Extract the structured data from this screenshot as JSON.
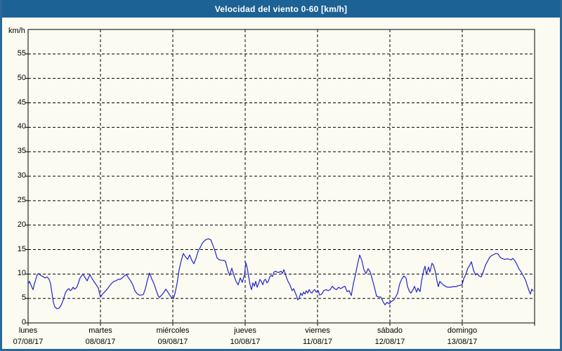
{
  "window": {
    "title": "Velocidad del viento 0-60 [km/h]"
  },
  "colors": {
    "titlebar_bg": "#1D6294",
    "title_text": "#FFFFFF",
    "frame_border": "#2B6897",
    "panel_bg": "#FBFBF2",
    "line": "#2222CC",
    "grid": "#000000",
    "axis": "#000000",
    "text": "#000000"
  },
  "chart_data": {
    "type": "line",
    "title": "Velocidad del viento 0-60 [km/h]",
    "ylabel": "km/h",
    "xlabel": "",
    "ylim": [
      0,
      60
    ],
    "xlim_days": [
      0,
      7
    ],
    "grid": true,
    "legend": "none",
    "y_ticks": [
      0,
      5,
      10,
      15,
      20,
      25,
      30,
      35,
      40,
      45,
      50,
      55
    ],
    "x_axis": {
      "days": [
        {
          "name": "lunes",
          "date": "07/08/17"
        },
        {
          "name": "martes",
          "date": "08/08/17"
        },
        {
          "name": "miércoles",
          "date": "09/08/17"
        },
        {
          "name": "jueves",
          "date": "10/08/17"
        },
        {
          "name": "viernes",
          "date": "11/08/17"
        },
        {
          "name": "sábado",
          "date": "12/08/17"
        },
        {
          "name": "domingo",
          "date": "13/08/17"
        }
      ]
    },
    "series": [
      {
        "name": "Velocidad del viento [km/h]",
        "color": "#2222CC",
        "points": [
          [
            0.0,
            8.0
          ],
          [
            0.019,
            8.5
          ],
          [
            0.049,
            7.4
          ],
          [
            0.068,
            6.8
          ],
          [
            0.087,
            8.0
          ],
          [
            0.126,
            9.9
          ],
          [
            0.146,
            10.1
          ],
          [
            0.175,
            9.7
          ],
          [
            0.204,
            9.5
          ],
          [
            0.233,
            9.2
          ],
          [
            0.262,
            9.4
          ],
          [
            0.291,
            8.9
          ],
          [
            0.311,
            8.0
          ],
          [
            0.33,
            6.1
          ],
          [
            0.35,
            4.2
          ],
          [
            0.369,
            3.3
          ],
          [
            0.398,
            2.9
          ],
          [
            0.427,
            3.0
          ],
          [
            0.456,
            3.6
          ],
          [
            0.485,
            4.7
          ],
          [
            0.515,
            6.1
          ],
          [
            0.544,
            6.8
          ],
          [
            0.563,
            7.0
          ],
          [
            0.583,
            6.6
          ],
          [
            0.602,
            6.8
          ],
          [
            0.621,
            7.3
          ],
          [
            0.641,
            6.9
          ],
          [
            0.67,
            7.2
          ],
          [
            0.689,
            7.9
          ],
          [
            0.718,
            9.2
          ],
          [
            0.757,
            10.0
          ],
          [
            0.786,
            9.3
          ],
          [
            0.816,
            8.6
          ],
          [
            0.854,
            9.9
          ],
          [
            0.883,
            9.1
          ],
          [
            0.913,
            8.4
          ],
          [
            0.942,
            7.8
          ],
          [
            0.971,
            7.1
          ],
          [
            1.0,
            5.3
          ],
          [
            1.029,
            5.9
          ],
          [
            1.068,
            6.5
          ],
          [
            1.097,
            7.0
          ],
          [
            1.126,
            7.6
          ],
          [
            1.155,
            8.1
          ],
          [
            1.184,
            8.5
          ],
          [
            1.214,
            8.6
          ],
          [
            1.243,
            8.9
          ],
          [
            1.272,
            8.9
          ],
          [
            1.301,
            9.2
          ],
          [
            1.33,
            9.6
          ],
          [
            1.359,
            9.9
          ],
          [
            1.388,
            9.2
          ],
          [
            1.417,
            8.6
          ],
          [
            1.447,
            7.8
          ],
          [
            1.476,
            6.6
          ],
          [
            1.505,
            6.0
          ],
          [
            1.534,
            5.7
          ],
          [
            1.563,
            5.7
          ],
          [
            1.592,
            5.8
          ],
          [
            1.621,
            7.0
          ],
          [
            1.65,
            8.8
          ],
          [
            1.68,
            10.2
          ],
          [
            1.709,
            9.0
          ],
          [
            1.738,
            8.1
          ],
          [
            1.767,
            6.8
          ],
          [
            1.796,
            5.6
          ],
          [
            1.816,
            5.2
          ],
          [
            1.845,
            5.7
          ],
          [
            1.874,
            6.2
          ],
          [
            1.903,
            6.9
          ],
          [
            1.932,
            6.3
          ],
          [
            1.961,
            5.6
          ],
          [
            1.99,
            5.1
          ],
          [
            2.01,
            5.0
          ],
          [
            2.029,
            6.0
          ],
          [
            2.058,
            8.0
          ],
          [
            2.087,
            10.9
          ],
          [
            2.117,
            12.8
          ],
          [
            2.146,
            14.2
          ],
          [
            2.175,
            13.5
          ],
          [
            2.204,
            13.0
          ],
          [
            2.233,
            13.9
          ],
          [
            2.262,
            12.8
          ],
          [
            2.291,
            12.1
          ],
          [
            2.32,
            13.2
          ],
          [
            2.35,
            14.7
          ],
          [
            2.379,
            15.4
          ],
          [
            2.408,
            16.3
          ],
          [
            2.437,
            16.8
          ],
          [
            2.466,
            17.1
          ],
          [
            2.495,
            17.2
          ],
          [
            2.524,
            17.0
          ],
          [
            2.553,
            15.9
          ],
          [
            2.583,
            14.7
          ],
          [
            2.612,
            13.3
          ],
          [
            2.641,
            12.9
          ],
          [
            2.67,
            12.8
          ],
          [
            2.699,
            12.8
          ],
          [
            2.728,
            12.6
          ],
          [
            2.757,
            10.9
          ],
          [
            2.786,
            9.7
          ],
          [
            2.816,
            11.2
          ],
          [
            2.845,
            9.7
          ],
          [
            2.874,
            8.5
          ],
          [
            2.903,
            7.8
          ],
          [
            2.932,
            9.2
          ],
          [
            2.961,
            8.3
          ],
          [
            2.99,
            9.9
          ],
          [
            3.01,
            12.3
          ],
          [
            3.029,
            11.2
          ],
          [
            3.049,
            9.4
          ],
          [
            3.068,
            7.8
          ],
          [
            3.087,
            6.8
          ],
          [
            3.107,
            8.2
          ],
          [
            3.126,
            7.5
          ],
          [
            3.146,
            8.5
          ],
          [
            3.165,
            7.3
          ],
          [
            3.184,
            8.0
          ],
          [
            3.204,
            8.9
          ],
          [
            3.223,
            8.5
          ],
          [
            3.243,
            7.8
          ],
          [
            3.262,
            8.7
          ],
          [
            3.282,
            8.9
          ],
          [
            3.301,
            8.2
          ],
          [
            3.32,
            8.5
          ],
          [
            3.34,
            9.4
          ],
          [
            3.359,
            9.7
          ],
          [
            3.379,
            9.5
          ],
          [
            3.398,
            10.4
          ],
          [
            3.417,
            10.6
          ],
          [
            3.437,
            10.4
          ],
          [
            3.456,
            10.3
          ],
          [
            3.476,
            10.4
          ],
          [
            3.495,
            10.6
          ],
          [
            3.515,
            10.1
          ],
          [
            3.534,
            10.9
          ],
          [
            3.553,
            10.1
          ],
          [
            3.573,
            9.2
          ],
          [
            3.592,
            8.5
          ],
          [
            3.612,
            8.0
          ],
          [
            3.631,
            7.3
          ],
          [
            3.65,
            6.6
          ],
          [
            3.67,
            7.0
          ],
          [
            3.689,
            6.3
          ],
          [
            3.709,
            5.6
          ],
          [
            3.728,
            4.7
          ],
          [
            3.748,
            5.1
          ],
          [
            3.767,
            6.1
          ],
          [
            3.786,
            5.6
          ],
          [
            3.806,
            6.3
          ],
          [
            3.825,
            5.9
          ],
          [
            3.845,
            6.6
          ],
          [
            3.864,
            6.1
          ],
          [
            3.884,
            6.8
          ],
          [
            3.903,
            6.3
          ],
          [
            3.922,
            6.1
          ],
          [
            3.942,
            6.6
          ],
          [
            3.961,
            6.8
          ],
          [
            3.981,
            6.3
          ],
          [
            4.01,
            6.6
          ],
          [
            4.029,
            5.7
          ],
          [
            4.058,
            5.9
          ],
          [
            4.087,
            6.6
          ],
          [
            4.117,
            6.8
          ],
          [
            4.146,
            6.6
          ],
          [
            4.175,
            6.8
          ],
          [
            4.204,
            7.5
          ],
          [
            4.233,
            7.0
          ],
          [
            4.262,
            6.8
          ],
          [
            4.291,
            7.3
          ],
          [
            4.32,
            7.0
          ],
          [
            4.35,
            7.3
          ],
          [
            4.379,
            7.5
          ],
          [
            4.408,
            6.4
          ],
          [
            4.437,
            6.6
          ],
          [
            4.466,
            5.6
          ],
          [
            4.495,
            8.0
          ],
          [
            4.524,
            9.9
          ],
          [
            4.553,
            12.0
          ],
          [
            4.583,
            13.9
          ],
          [
            4.612,
            12.8
          ],
          [
            4.641,
            10.9
          ],
          [
            4.67,
            10.1
          ],
          [
            4.699,
            11.1
          ],
          [
            4.728,
            10.4
          ],
          [
            4.757,
            8.9
          ],
          [
            4.786,
            7.3
          ],
          [
            4.816,
            5.5
          ],
          [
            4.845,
            5.3
          ],
          [
            4.874,
            5.3
          ],
          [
            4.903,
            4.4
          ],
          [
            4.932,
            3.7
          ],
          [
            4.961,
            4.2
          ],
          [
            4.99,
            3.9
          ],
          [
            5.019,
            4.4
          ],
          [
            5.049,
            4.6
          ],
          [
            5.078,
            5.2
          ],
          [
            5.107,
            6.1
          ],
          [
            5.136,
            8.0
          ],
          [
            5.165,
            9.0
          ],
          [
            5.194,
            9.6
          ],
          [
            5.223,
            9.2
          ],
          [
            5.243,
            7.5
          ],
          [
            5.272,
            6.4
          ],
          [
            5.291,
            6.1
          ],
          [
            5.32,
            6.8
          ],
          [
            5.34,
            7.5
          ],
          [
            5.369,
            6.3
          ],
          [
            5.388,
            7.1
          ],
          [
            5.417,
            6.4
          ],
          [
            5.437,
            8.5
          ],
          [
            5.466,
            10.7
          ],
          [
            5.485,
            11.6
          ],
          [
            5.505,
            9.9
          ],
          [
            5.534,
            11.4
          ],
          [
            5.553,
            10.4
          ],
          [
            5.583,
            12.2
          ],
          [
            5.602,
            11.8
          ],
          [
            5.631,
            10.3
          ],
          [
            5.65,
            8.6
          ],
          [
            5.67,
            7.4
          ],
          [
            5.689,
            8.5
          ],
          [
            5.709,
            8.2
          ],
          [
            5.738,
            7.8
          ],
          [
            5.767,
            7.5
          ],
          [
            5.796,
            7.3
          ],
          [
            5.835,
            7.3
          ],
          [
            5.874,
            7.4
          ],
          [
            5.913,
            7.4
          ],
          [
            5.942,
            7.6
          ],
          [
            5.971,
            7.7
          ],
          [
            6.0,
            7.9
          ],
          [
            6.019,
            9.0
          ],
          [
            6.049,
            9.9
          ],
          [
            6.078,
            11.2
          ],
          [
            6.107,
            11.9
          ],
          [
            6.126,
            12.5
          ],
          [
            6.155,
            10.8
          ],
          [
            6.184,
            9.8
          ],
          [
            6.204,
            10.1
          ],
          [
            6.233,
            9.6
          ],
          [
            6.262,
            9.4
          ],
          [
            6.291,
            10.5
          ],
          [
            6.32,
            11.8
          ],
          [
            6.35,
            12.6
          ],
          [
            6.379,
            13.4
          ],
          [
            6.408,
            13.8
          ],
          [
            6.437,
            14.0
          ],
          [
            6.466,
            14.2
          ],
          [
            6.495,
            14.1
          ],
          [
            6.515,
            13.6
          ],
          [
            6.534,
            13.3
          ],
          [
            6.563,
            13.1
          ],
          [
            6.592,
            13.0
          ],
          [
            6.621,
            13.1
          ],
          [
            6.65,
            13.0
          ],
          [
            6.68,
            12.9
          ],
          [
            6.699,
            13.2
          ],
          [
            6.728,
            12.7
          ],
          [
            6.757,
            11.9
          ],
          [
            6.786,
            11.0
          ],
          [
            6.816,
            10.4
          ],
          [
            6.845,
            9.6
          ],
          [
            6.874,
            8.8
          ],
          [
            6.893,
            7.9
          ],
          [
            6.922,
            6.6
          ],
          [
            6.942,
            5.9
          ],
          [
            6.961,
            6.9
          ],
          [
            6.981,
            6.5
          ]
        ]
      }
    ]
  }
}
